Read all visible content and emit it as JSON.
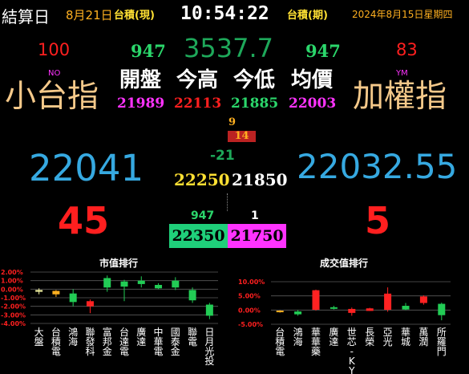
{
  "topbar": {
    "settle_label": "結算日",
    "settle_date": "8月21日",
    "left_tag": "台積(現)",
    "clock": "10:54:22",
    "right_tag": "台積(期)",
    "full_date": "2024年8月15日星期四"
  },
  "left_panel": {
    "count": "100",
    "code": "NO",
    "title": "小台指"
  },
  "right_panel": {
    "count": "83",
    "code": "YM",
    "title": "加權指"
  },
  "center": {
    "left_num": "947",
    "main_value": "3537.7",
    "right_num": "947",
    "labels": {
      "open": "開盤",
      "high": "今高",
      "low": "今低",
      "avg": "均價"
    },
    "values": {
      "open": "21989",
      "high": "22113",
      "low": "21885",
      "avg": "22003"
    },
    "small_top": "9",
    "small_mid": "14",
    "change": "-21",
    "upper_limit": "22250",
    "lower_limit": "21850",
    "vol_left": "947",
    "vol_right": "1",
    "box_left": "22350",
    "box_right": "21750"
  },
  "big_left": {
    "price": "22041",
    "count": "45"
  },
  "big_right": {
    "price": "22032.55",
    "count": "5"
  },
  "colors": {
    "bg": "#000000",
    "red": "#ff1f1f",
    "green": "#1ea85a",
    "bright_green": "#2bd66b",
    "orange": "#ffb020",
    "cyan": "#36a9e1",
    "magenta": "#ff33ff",
    "yellow": "#ffe033",
    "tan": "#f5c98a",
    "candle_yellow": "#f2f2a0",
    "candle_red": "#ff2222",
    "candle_green": "#22cc55"
  },
  "chart_data": [
    {
      "type": "candlestick",
      "title": "市值排行",
      "y_ticks": [
        "2.00%",
        "1.00%",
        "0.00%",
        "-1.00%",
        "-2.00%",
        "-3.00%",
        "-4.00%"
      ],
      "ylim": [
        -4,
        2
      ],
      "categories": [
        "大盤",
        "台積電",
        "鴻海",
        "聯發科",
        "富邦金",
        "台達電",
        "廣達",
        "中華電",
        "國泰金",
        "聯電",
        "日月光投"
      ],
      "candles": [
        {
          "open": -0.3,
          "close": -0.1,
          "high": 0.1,
          "low": -0.6,
          "color": "yellow"
        },
        {
          "open": -0.2,
          "close": -0.6,
          "high": -0.1,
          "low": -0.9,
          "color": "orange"
        },
        {
          "open": -0.5,
          "close": -1.5,
          "high": 0.0,
          "low": -2.0,
          "color": "green"
        },
        {
          "open": -1.4,
          "close": -2.0,
          "high": -1.2,
          "low": -2.8,
          "color": "red"
        },
        {
          "open": 1.3,
          "close": 0.2,
          "high": 1.6,
          "low": -0.3,
          "color": "green"
        },
        {
          "open": 0.9,
          "close": 0.3,
          "high": 1.1,
          "low": -1.4,
          "color": "green"
        },
        {
          "open": 1.0,
          "close": 0.6,
          "high": 1.5,
          "low": 0.2,
          "color": "green"
        },
        {
          "open": 0.5,
          "close": 0.1,
          "high": 0.7,
          "low": 0.0,
          "color": "green"
        },
        {
          "open": 1.0,
          "close": 0.2,
          "high": 1.4,
          "low": -0.1,
          "color": "green"
        },
        {
          "open": -0.1,
          "close": -1.3,
          "high": 0.2,
          "low": -1.6,
          "color": "green"
        },
        {
          "open": -1.8,
          "close": -3.1,
          "high": -1.6,
          "low": -3.5,
          "color": "green"
        }
      ]
    },
    {
      "type": "candlestick",
      "title": "成交值排行",
      "y_ticks": [
        "10.00%",
        "5.00%",
        "0.00%",
        "-5.00%"
      ],
      "ylim": [
        -5,
        10
      ],
      "categories": [
        "台積電",
        "鴻海",
        "華華藥",
        "廣達",
        "世芯-KY",
        "長榮",
        "亞光",
        "華城",
        "萬潤",
        "所羅門"
      ],
      "candles": [
        {
          "open": -0.2,
          "close": -0.6,
          "high": -0.1,
          "low": -0.9,
          "color": "orange"
        },
        {
          "open": -0.5,
          "close": -1.5,
          "high": 0.0,
          "low": -2.0,
          "color": "green"
        },
        {
          "open": 0.1,
          "close": 7.0,
          "high": 7.2,
          "low": -0.2,
          "color": "red"
        },
        {
          "open": 1.0,
          "close": 0.6,
          "high": 1.5,
          "low": 0.2,
          "color": "green"
        },
        {
          "open": -1.0,
          "close": 0.4,
          "high": 0.9,
          "low": -2.0,
          "color": "red"
        },
        {
          "open": -0.3,
          "close": 0.6,
          "high": 0.8,
          "low": -0.3,
          "color": "red"
        },
        {
          "open": 0.1,
          "close": 5.8,
          "high": 8.0,
          "low": -0.6,
          "color": "red"
        },
        {
          "open": 1.5,
          "close": 0.2,
          "high": 2.5,
          "low": 0.0,
          "color": "green"
        },
        {
          "open": 2.5,
          "close": 4.8,
          "high": 5.2,
          "low": 1.9,
          "color": "red"
        },
        {
          "open": 2.2,
          "close": -1.8,
          "high": 2.6,
          "low": -3.6,
          "color": "green"
        }
      ]
    }
  ]
}
